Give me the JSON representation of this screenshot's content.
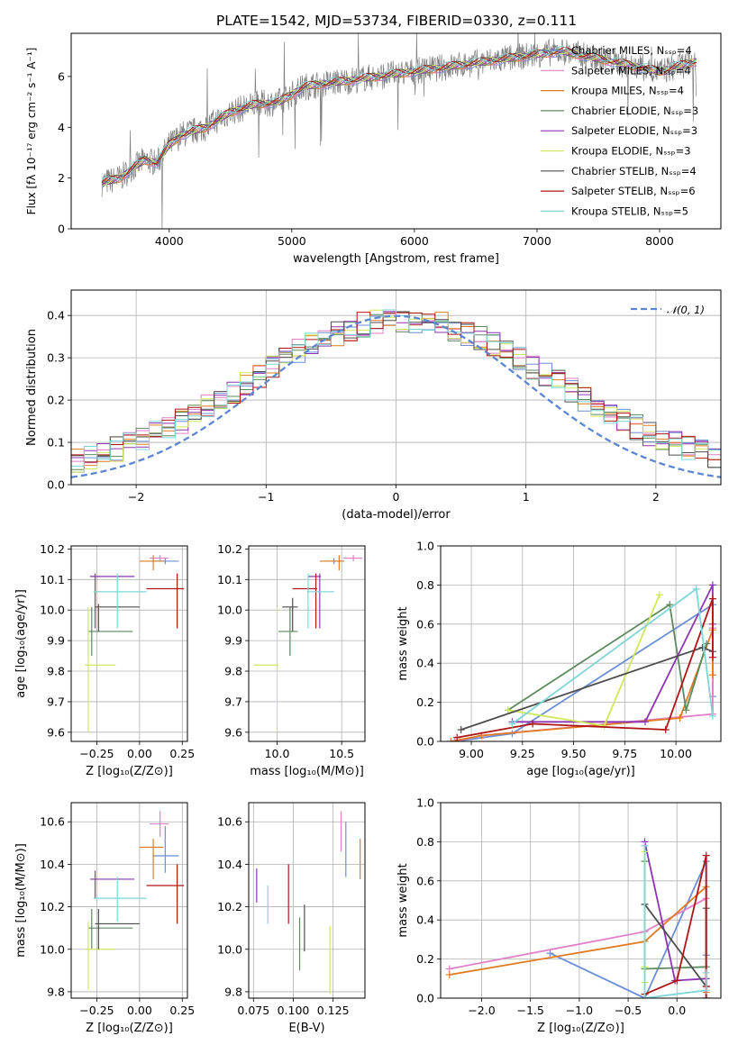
{
  "figure_title": "PLATE=1542, MJD=53734, FIBERID=0330, z=0.111",
  "chart_data": [
    {
      "id": "spectrum",
      "type": "line",
      "xlabel": "wavelength [Angstrom, rest frame]",
      "ylabel_html": "Flux [fλ 10⁻¹⁷ erg cm⁻² s⁻¹ A⁻¹]",
      "xlim": [
        3200,
        8500
      ],
      "ylim": [
        0,
        7.7
      ],
      "xticks": [
        4000,
        5000,
        6000,
        7000,
        8000
      ],
      "yticks": [
        0,
        2,
        4,
        6
      ],
      "grid": false,
      "legend_position": "top-right",
      "legend": [
        {
          "name": "Chabrier MILES, Nₛₛₚ=4",
          "color": "#6b8fd6"
        },
        {
          "name": "Salpeter MILES, Nₛₛₚ=4",
          "color": "#e17fc7"
        },
        {
          "name": "Kroupa MILES, Nₛₛₚ=4",
          "color": "#e07b22"
        },
        {
          "name": "Chabrier ELODIE, Nₛₛₚ=3",
          "color": "#5d8a5d"
        },
        {
          "name": "Salpeter ELODIE, Nₛₛₚ=3",
          "color": "#8e34b3"
        },
        {
          "name": "Kroupa ELODIE, Nₛₛₚ=3",
          "color": "#cfe85a"
        },
        {
          "name": "Chabrier STELIB, Nₛₛₚ=4",
          "color": "#4d4d4d"
        },
        {
          "name": "Salpeter STELIB, Nₛₛₚ=6",
          "color": "#b01515"
        },
        {
          "name": "Kroupa STELIB, Nₛₛₚ=5",
          "color": "#7ed6d6"
        }
      ],
      "continuum": {
        "x": [
          3450,
          3600,
          3700,
          3800,
          3900,
          4000,
          4100,
          4300,
          4500,
          4700,
          4900,
          5100,
          5400,
          5700,
          6000,
          6300,
          6600,
          6900,
          7200,
          7400,
          7700,
          8000,
          8300
        ],
        "y": [
          1.8,
          2.0,
          2.4,
          2.7,
          2.6,
          3.3,
          3.7,
          4.0,
          4.6,
          4.9,
          5.0,
          5.6,
          5.8,
          6.0,
          6.2,
          6.4,
          6.6,
          6.8,
          7.0,
          6.8,
          6.5,
          6.2,
          6.6
        ]
      }
    },
    {
      "id": "residuals",
      "type": "line",
      "xlabel": "(data-model)/error",
      "ylabel": "Normed distribution",
      "xlim": [
        -2.5,
        2.5
      ],
      "ylim": [
        0,
        0.46
      ],
      "xticks": [
        -2,
        -1,
        0,
        1,
        2
      ],
      "ytick_labels": [
        "0.0",
        "0.1",
        "0.2",
        "0.3",
        "0.4"
      ],
      "yticks": [
        0,
        0.1,
        0.2,
        0.3,
        0.4
      ],
      "grid": true,
      "legend_position": "top-right",
      "legend_label": "𝒩(0, 1)",
      "gaussian": {
        "mean": 0,
        "sigma": 1,
        "color": "#5b86d1"
      },
      "bin_width": 0.1
    },
    {
      "id": "age-vs-Z",
      "type": "scatter",
      "xlabel": "Z [log₁₀(Z/Z⊙)]",
      "ylabel": "age  [log₁₀(age/yr)]",
      "xlim": [
        -0.4,
        0.28
      ],
      "ylim": [
        9.57,
        10.21
      ],
      "xticks": [
        -0.25,
        0.0,
        0.25
      ],
      "xtick_labels": [
        "−0.25",
        "0.00",
        "0.25"
      ],
      "yticks": [
        9.6,
        9.7,
        9.8,
        9.9,
        10.0,
        10.1,
        10.2
      ],
      "ytick_labels": [
        "9.6",
        "9.7",
        "9.8",
        "9.9",
        "10.0",
        "10.1",
        "10.2"
      ],
      "grid": true,
      "points": [
        {
          "x": 0.15,
          "y": 10.16,
          "xerr": [
            0.07,
            0.08
          ],
          "yerr": [
            0.01,
            0.01
          ],
          "color": "#6b8fd6"
        },
        {
          "x": 0.12,
          "y": 10.17,
          "xerr": [
            0.06,
            0.05
          ],
          "yerr": [
            0.01,
            0.01
          ],
          "color": "#e17fc7"
        },
        {
          "x": 0.08,
          "y": 10.16,
          "xerr": [
            0.08,
            0.06
          ],
          "yerr": [
            0.03,
            0.02
          ],
          "color": "#e07b22"
        },
        {
          "x": -0.28,
          "y": 9.93,
          "xerr": [
            0.02,
            0.24
          ],
          "yerr": [
            0.08,
            0.08
          ],
          "color": "#5d8a5d"
        },
        {
          "x": -0.26,
          "y": 10.11,
          "xerr": [
            0.03,
            0.23
          ],
          "yerr": [
            0.17,
            0.01
          ],
          "color": "#8e34b3"
        },
        {
          "x": -0.3,
          "y": 9.82,
          "xerr": [
            0.02,
            0.16
          ],
          "yerr": [
            0.22,
            0.19
          ],
          "color": "#cfe85a"
        },
        {
          "x": -0.24,
          "y": 10.01,
          "xerr": [
            0.02,
            0.24
          ],
          "yerr": [
            0.08,
            0.01
          ],
          "color": "#4d4d4d"
        },
        {
          "x": 0.22,
          "y": 10.07,
          "xerr": [
            0.18,
            0.04
          ],
          "yerr": [
            0.13,
            0.05
          ],
          "color": "#b01515"
        },
        {
          "x": -0.13,
          "y": 10.06,
          "xerr": [
            0.14,
            0.17
          ],
          "yerr": [
            0.12,
            0.06
          ],
          "color": "#7ed6d6"
        }
      ]
    },
    {
      "id": "age-vs-mass",
      "type": "scatter",
      "xlabel": "mass [log₁₀(M/M⊙)]",
      "xlim": [
        9.78,
        10.68
      ],
      "ylim": [
        9.57,
        10.21
      ],
      "xticks": [
        10.0,
        10.5
      ],
      "xtick_labels": [
        "10.0",
        "10.5"
      ],
      "yticks": [
        9.6,
        9.7,
        9.8,
        9.9,
        10.0,
        10.1,
        10.2
      ],
      "ytick_labels": [
        "9.6",
        "9.7",
        "9.8",
        "9.9",
        "10.0",
        "10.1",
        "10.2"
      ],
      "grid": true,
      "points": [
        {
          "x": 10.44,
          "y": 10.16,
          "xerr": [
            0.07,
            0.08
          ],
          "yerr": [
            0.01,
            0.01
          ],
          "color": "#6b8fd6"
        },
        {
          "x": 10.59,
          "y": 10.17,
          "xerr": [
            0.08,
            0.07
          ],
          "yerr": [
            0.01,
            0.01
          ],
          "color": "#e17fc7"
        },
        {
          "x": 10.48,
          "y": 10.16,
          "xerr": [
            0.15,
            0.04
          ],
          "yerr": [
            0.03,
            0.02
          ],
          "color": "#e07b22"
        },
        {
          "x": 10.1,
          "y": 9.93,
          "xerr": [
            0.09,
            0.06
          ],
          "yerr": [
            0.08,
            0.08
          ],
          "color": "#5d8a5d"
        },
        {
          "x": 10.33,
          "y": 10.11,
          "xerr": [
            0.09,
            0.01
          ],
          "yerr": [
            0.17,
            0.01
          ],
          "color": "#8e34b3"
        },
        {
          "x": 10.0,
          "y": 9.82,
          "xerr": [
            0.18,
            0.01
          ],
          "yerr": [
            0.22,
            0.19
          ],
          "color": "#cfe85a"
        },
        {
          "x": 10.12,
          "y": 10.01,
          "xerr": [
            0.08,
            0.04
          ],
          "yerr": [
            0.08,
            0.03
          ],
          "color": "#4d4d4d"
        },
        {
          "x": 10.3,
          "y": 10.07,
          "xerr": [
            0.18,
            0.01
          ],
          "yerr": [
            0.13,
            0.05
          ],
          "color": "#b01515"
        },
        {
          "x": 10.24,
          "y": 10.06,
          "xerr": [
            0.01,
            0.2
          ],
          "yerr": [
            0.12,
            0.06
          ],
          "color": "#7ed6d6"
        }
      ]
    },
    {
      "id": "massweight-vs-age",
      "type": "line",
      "xlabel": "age  [log₁₀(age/yr)]",
      "ylabel": "mass weight",
      "xlim": [
        8.85,
        10.22
      ],
      "ylim": [
        0,
        1.0
      ],
      "xticks": [
        9.0,
        9.25,
        9.5,
        9.75,
        10.0
      ],
      "xtick_labels": [
        "9.00",
        "9.25",
        "9.50",
        "9.75",
        "10.00"
      ],
      "yticks": [
        0,
        0.2,
        0.4,
        0.6,
        0.8,
        1.0
      ],
      "ytick_labels": [
        "0.0",
        "0.2",
        "0.4",
        "0.6",
        "0.8",
        "1.0"
      ],
      "grid": true,
      "series": [
        {
          "color": "#6b8fd6",
          "x": [
            8.92,
            9.2,
            10.18,
            10.18
          ],
          "y": [
            0.0,
            0.04,
            0.7,
            0.23
          ]
        },
        {
          "color": "#e17fc7",
          "x": [
            8.92,
            9.05,
            10.18,
            10.18
          ],
          "y": [
            0.0,
            0.03,
            0.14,
            0.58
          ]
        },
        {
          "color": "#e07b22",
          "x": [
            8.9,
            9.05,
            10.02,
            10.18,
            10.18
          ],
          "y": [
            0.0,
            0.03,
            0.12,
            0.57,
            0.34
          ]
        },
        {
          "color": "#5d8a5d",
          "x": [
            9.18,
            9.97,
            10.05,
            10.15
          ],
          "y": [
            0.16,
            0.7,
            0.16,
            0.5
          ]
        },
        {
          "color": "#8e34b3",
          "x": [
            9.2,
            9.85,
            10.18,
            10.18
          ],
          "y": [
            0.1,
            0.1,
            0.8,
            0.6
          ]
        },
        {
          "color": "#cfe85a",
          "x": [
            9.18,
            9.65,
            9.92
          ],
          "y": [
            0.16,
            0.08,
            0.75
          ]
        },
        {
          "color": "#4d4d4d",
          "x": [
            8.95,
            10.13,
            10.18
          ],
          "y": [
            0.06,
            0.48,
            0.46
          ]
        },
        {
          "color": "#b01515",
          "x": [
            8.93,
            9.3,
            9.95,
            10.18,
            10.18
          ],
          "y": [
            0.02,
            0.09,
            0.06,
            0.73,
            0.43
          ]
        },
        {
          "color": "#7ed6d6",
          "x": [
            9.2,
            10.1,
            10.18
          ],
          "y": [
            0.09,
            0.78,
            0.13
          ]
        }
      ]
    },
    {
      "id": "mass-vs-Z",
      "type": "scatter",
      "xlabel": "Z [log₁₀(Z/Z⊙)]",
      "ylabel": "mass [log₁₀(M/M⊙)]",
      "xlim": [
        -0.4,
        0.28
      ],
      "ylim": [
        9.77,
        10.69
      ],
      "xticks": [
        -0.25,
        0.0,
        0.25
      ],
      "xtick_labels": [
        "−0.25",
        "0.00",
        "0.25"
      ],
      "yticks": [
        9.8,
        10.0,
        10.2,
        10.4,
        10.6
      ],
      "ytick_labels": [
        "9.8",
        "10.0",
        "10.2",
        "10.4",
        "10.6"
      ],
      "grid": true,
      "points": [
        {
          "x": 0.15,
          "y": 10.44,
          "xerr": [
            0.07,
            0.08
          ],
          "yerr": [
            0.08,
            0.14
          ],
          "color": "#6b8fd6"
        },
        {
          "x": 0.12,
          "y": 10.59,
          "xerr": [
            0.06,
            0.05
          ],
          "yerr": [
            0.06,
            0.06
          ],
          "color": "#e17fc7"
        },
        {
          "x": 0.08,
          "y": 10.48,
          "xerr": [
            0.08,
            0.06
          ],
          "yerr": [
            0.15,
            0.04
          ],
          "color": "#e07b22"
        },
        {
          "x": -0.28,
          "y": 10.1,
          "xerr": [
            0.02,
            0.24
          ],
          "yerr": [
            0.1,
            0.09
          ],
          "color": "#5d8a5d"
        },
        {
          "x": -0.26,
          "y": 10.33,
          "xerr": [
            0.03,
            0.23
          ],
          "yerr": [
            0.09,
            0.04
          ],
          "color": "#8e34b3"
        },
        {
          "x": -0.3,
          "y": 10.0,
          "xerr": [
            0.02,
            0.16
          ],
          "yerr": [
            0.19,
            0.13
          ],
          "color": "#cfe85a"
        },
        {
          "x": -0.24,
          "y": 10.12,
          "xerr": [
            0.02,
            0.24
          ],
          "yerr": [
            0.12,
            0.07
          ],
          "color": "#4d4d4d"
        },
        {
          "x": 0.22,
          "y": 10.3,
          "xerr": [
            0.18,
            0.04
          ],
          "yerr": [
            0.18,
            0.1
          ],
          "color": "#b01515"
        },
        {
          "x": -0.13,
          "y": 10.24,
          "xerr": [
            0.14,
            0.17
          ],
          "yerr": [
            0.11,
            0.1
          ],
          "color": "#7ed6d6"
        }
      ]
    },
    {
      "id": "mass-vs-EBV",
      "type": "scatter",
      "xlabel": "E(B-V)",
      "xlim": [
        0.072,
        0.145
      ],
      "ylim": [
        9.77,
        10.69
      ],
      "xticks": [
        0.075,
        0.1,
        0.125
      ],
      "xtick_labels": [
        "0.075",
        "0.100",
        "0.125"
      ],
      "yticks": [
        9.8,
        10.0,
        10.2,
        10.4,
        10.6
      ],
      "ytick_labels": [
        "9.8",
        "10.0",
        "10.2",
        "10.4",
        "10.6"
      ],
      "grid": true,
      "points": [
        {
          "x": 0.133,
          "y": 10.46,
          "yerr": [
            0.12,
            0.14
          ],
          "color": "#6b8fd6"
        },
        {
          "x": 0.13,
          "y": 10.55,
          "yerr": [
            0.09,
            0.1
          ],
          "color": "#e17fc7"
        },
        {
          "x": 0.142,
          "y": 10.42,
          "yerr": [
            0.09,
            0.1
          ],
          "color": "#e07b22"
        },
        {
          "x": 0.104,
          "y": 10.06,
          "yerr": [
            0.16,
            0.09
          ],
          "color": "#5d8a5d"
        },
        {
          "x": 0.077,
          "y": 10.3,
          "yerr": [
            0.08,
            0.08
          ],
          "color": "#8e34b3"
        },
        {
          "x": 0.123,
          "y": 9.95,
          "yerr": [
            0.16,
            0.16
          ],
          "color": "#cfe85a"
        },
        {
          "x": 0.107,
          "y": 10.1,
          "yerr": [
            0.11,
            0.11
          ],
          "color": "#4d4d4d"
        },
        {
          "x": 0.097,
          "y": 10.26,
          "yerr": [
            0.14,
            0.14
          ],
          "color": "#b01515"
        },
        {
          "x": 0.084,
          "y": 10.21,
          "yerr": [
            0.09,
            0.09
          ],
          "color": "#7ed6d6"
        }
      ]
    },
    {
      "id": "massweight-vs-Z",
      "type": "line",
      "xlabel": "Z [log₁₀(Z/Z⊙)]",
      "ylabel": "mass weight",
      "xlim": [
        -2.42,
        0.45
      ],
      "ylim": [
        0,
        1.0
      ],
      "xticks": [
        -2.0,
        -1.5,
        -1.0,
        -0.5,
        0.0
      ],
      "xtick_labels": [
        "−2.0",
        "−1.5",
        "−1.0",
        "−0.5",
        "0.0"
      ],
      "yticks": [
        0,
        0.2,
        0.4,
        0.6,
        0.8,
        1.0
      ],
      "ytick_labels": [
        "0.0",
        "0.2",
        "0.4",
        "0.6",
        "0.8",
        "1.0"
      ],
      "grid": true,
      "series": [
        {
          "color": "#6b8fd6",
          "x": [
            -1.3,
            -0.33,
            0.3,
            0.3
          ],
          "y": [
            0.23,
            0.0,
            0.7,
            0.22
          ]
        },
        {
          "color": "#e17fc7",
          "x": [
            -2.33,
            -0.33,
            0.3
          ],
          "y": [
            0.15,
            0.34,
            0.51
          ]
        },
        {
          "color": "#e07b22",
          "x": [
            -2.33,
            -0.33,
            0.3,
            0.3
          ],
          "y": [
            0.12,
            0.29,
            0.57,
            0.03
          ]
        },
        {
          "color": "#5d8a5d",
          "x": [
            -0.33,
            -0.33,
            0.3
          ],
          "y": [
            0.7,
            0.15,
            0.16
          ]
        },
        {
          "color": "#8e34b3",
          "x": [
            -0.33,
            -0.02,
            0.3,
            0.3
          ],
          "y": [
            0.8,
            0.09,
            0.1,
            0.0
          ]
        },
        {
          "color": "#cfe85a",
          "x": [
            -0.33,
            -0.33,
            -0.33
          ],
          "y": [
            0.75,
            0.16,
            0.08
          ]
        },
        {
          "color": "#4d4d4d",
          "x": [
            -0.33,
            0.3,
            0.3
          ],
          "y": [
            0.48,
            0.06,
            0.46
          ]
        },
        {
          "color": "#b01515",
          "x": [
            -0.33,
            0.0,
            0.3,
            0.3,
            0.3
          ],
          "y": [
            0.02,
            0.09,
            0.73,
            0.06,
            0.0
          ]
        },
        {
          "color": "#7ed6d6",
          "x": [
            -0.33,
            -0.33,
            0.3,
            0.3
          ],
          "y": [
            0.78,
            0.0,
            0.04,
            0.13
          ]
        }
      ]
    }
  ]
}
